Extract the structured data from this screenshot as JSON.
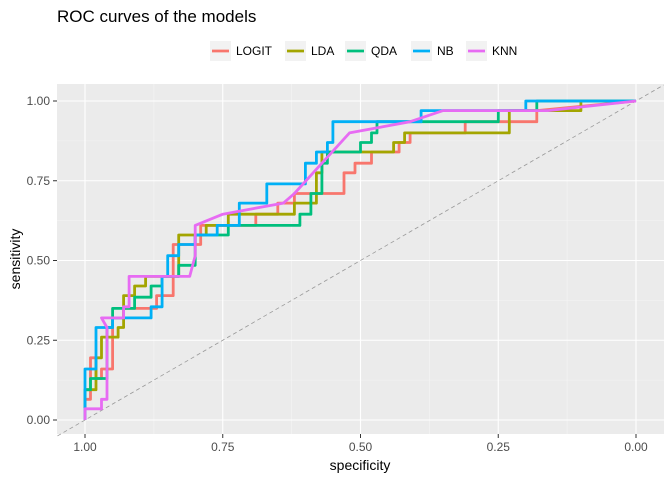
{
  "chart_data": {
    "type": "line",
    "title": "ROC curves of the models",
    "xlabel": "specificity",
    "ylabel": "sensitivity",
    "x_reversed": true,
    "xlim": [
      1.0,
      0.0
    ],
    "ylim": [
      0.0,
      1.0
    ],
    "x_ticks": [
      "1.00",
      "0.75",
      "0.50",
      "0.25",
      "0.00"
    ],
    "y_ticks": [
      "0.00",
      "0.25",
      "0.50",
      "0.75",
      "1.00"
    ],
    "x_tick_values": [
      1.0,
      0.75,
      0.5,
      0.25,
      0.0
    ],
    "y_tick_values": [
      0.0,
      0.25,
      0.5,
      0.75,
      1.0
    ],
    "grid": true,
    "legend_position": "top",
    "reference_line": "diagonal dashed grey",
    "series": [
      {
        "name": "LOGIT",
        "color": "#F8766D",
        "points": [
          [
            1.0,
            0.0
          ],
          [
            1.0,
            0.065
          ],
          [
            0.99,
            0.065
          ],
          [
            0.99,
            0.195
          ],
          [
            0.98,
            0.195
          ],
          [
            0.98,
            0.13
          ],
          [
            0.97,
            0.13
          ],
          [
            0.97,
            0.16
          ],
          [
            0.95,
            0.16
          ],
          [
            0.95,
            0.32
          ],
          [
            0.93,
            0.32
          ],
          [
            0.93,
            0.35
          ],
          [
            0.87,
            0.35
          ],
          [
            0.87,
            0.39
          ],
          [
            0.84,
            0.39
          ],
          [
            0.84,
            0.55
          ],
          [
            0.79,
            0.55
          ],
          [
            0.79,
            0.61
          ],
          [
            0.69,
            0.61
          ],
          [
            0.69,
            0.645
          ],
          [
            0.65,
            0.645
          ],
          [
            0.65,
            0.68
          ],
          [
            0.62,
            0.68
          ],
          [
            0.62,
            0.71
          ],
          [
            0.53,
            0.71
          ],
          [
            0.53,
            0.775
          ],
          [
            0.51,
            0.775
          ],
          [
            0.51,
            0.805
          ],
          [
            0.48,
            0.805
          ],
          [
            0.48,
            0.84
          ],
          [
            0.43,
            0.84
          ],
          [
            0.43,
            0.87
          ],
          [
            0.41,
            0.87
          ],
          [
            0.41,
            0.9
          ],
          [
            0.31,
            0.9
          ],
          [
            0.31,
            0.935
          ],
          [
            0.18,
            0.935
          ],
          [
            0.18,
            0.97
          ],
          [
            0.0,
            1.0
          ]
        ]
      },
      {
        "name": "LDA",
        "color": "#A3A500",
        "points": [
          [
            1.0,
            0.0
          ],
          [
            1.0,
            0.095
          ],
          [
            0.98,
            0.095
          ],
          [
            0.98,
            0.195
          ],
          [
            0.97,
            0.195
          ],
          [
            0.97,
            0.26
          ],
          [
            0.94,
            0.26
          ],
          [
            0.94,
            0.29
          ],
          [
            0.93,
            0.29
          ],
          [
            0.93,
            0.39
          ],
          [
            0.91,
            0.39
          ],
          [
            0.91,
            0.42
          ],
          [
            0.89,
            0.42
          ],
          [
            0.89,
            0.45
          ],
          [
            0.83,
            0.45
          ],
          [
            0.83,
            0.58
          ],
          [
            0.78,
            0.58
          ],
          [
            0.78,
            0.61
          ],
          [
            0.74,
            0.61
          ],
          [
            0.74,
            0.645
          ],
          [
            0.62,
            0.645
          ],
          [
            0.62,
            0.68
          ],
          [
            0.58,
            0.68
          ],
          [
            0.58,
            0.775
          ],
          [
            0.57,
            0.775
          ],
          [
            0.57,
            0.84
          ],
          [
            0.44,
            0.84
          ],
          [
            0.44,
            0.87
          ],
          [
            0.42,
            0.87
          ],
          [
            0.42,
            0.9
          ],
          [
            0.23,
            0.9
          ],
          [
            0.23,
            0.97
          ],
          [
            0.1,
            0.97
          ],
          [
            0.1,
            1.0
          ],
          [
            0.0,
            1.0
          ]
        ]
      },
      {
        "name": "QDA",
        "color": "#00BF7D",
        "points": [
          [
            1.0,
            0.0
          ],
          [
            1.0,
            0.095
          ],
          [
            0.99,
            0.095
          ],
          [
            0.99,
            0.13
          ],
          [
            0.96,
            0.13
          ],
          [
            0.96,
            0.29
          ],
          [
            0.95,
            0.29
          ],
          [
            0.95,
            0.35
          ],
          [
            0.91,
            0.35
          ],
          [
            0.91,
            0.385
          ],
          [
            0.88,
            0.385
          ],
          [
            0.88,
            0.42
          ],
          [
            0.86,
            0.42
          ],
          [
            0.86,
            0.45
          ],
          [
            0.83,
            0.45
          ],
          [
            0.83,
            0.485
          ],
          [
            0.8,
            0.485
          ],
          [
            0.8,
            0.58
          ],
          [
            0.74,
            0.58
          ],
          [
            0.74,
            0.61
          ],
          [
            0.61,
            0.61
          ],
          [
            0.61,
            0.645
          ],
          [
            0.59,
            0.645
          ],
          [
            0.59,
            0.71
          ],
          [
            0.57,
            0.71
          ],
          [
            0.57,
            0.805
          ],
          [
            0.56,
            0.805
          ],
          [
            0.56,
            0.84
          ],
          [
            0.5,
            0.84
          ],
          [
            0.5,
            0.87
          ],
          [
            0.48,
            0.87
          ],
          [
            0.48,
            0.9
          ],
          [
            0.47,
            0.9
          ],
          [
            0.47,
            0.935
          ],
          [
            0.25,
            0.935
          ],
          [
            0.25,
            0.97
          ],
          [
            0.18,
            0.97
          ],
          [
            0.18,
            1.0
          ],
          [
            0.0,
            1.0
          ]
        ]
      },
      {
        "name": "NB",
        "color": "#00B0F6",
        "points": [
          [
            1.0,
            0.0
          ],
          [
            1.0,
            0.16
          ],
          [
            0.98,
            0.16
          ],
          [
            0.98,
            0.29
          ],
          [
            0.95,
            0.29
          ],
          [
            0.95,
            0.32
          ],
          [
            0.88,
            0.32
          ],
          [
            0.88,
            0.355
          ],
          [
            0.86,
            0.355
          ],
          [
            0.86,
            0.45
          ],
          [
            0.85,
            0.45
          ],
          [
            0.85,
            0.515
          ],
          [
            0.83,
            0.515
          ],
          [
            0.83,
            0.55
          ],
          [
            0.8,
            0.55
          ],
          [
            0.8,
            0.58
          ],
          [
            0.76,
            0.58
          ],
          [
            0.76,
            0.61
          ],
          [
            0.72,
            0.61
          ],
          [
            0.72,
            0.68
          ],
          [
            0.67,
            0.68
          ],
          [
            0.67,
            0.74
          ],
          [
            0.6,
            0.74
          ],
          [
            0.6,
            0.805
          ],
          [
            0.58,
            0.805
          ],
          [
            0.58,
            0.84
          ],
          [
            0.56,
            0.84
          ],
          [
            0.56,
            0.87
          ],
          [
            0.55,
            0.87
          ],
          [
            0.55,
            0.935
          ],
          [
            0.39,
            0.935
          ],
          [
            0.39,
            0.97
          ],
          [
            0.2,
            0.97
          ],
          [
            0.2,
            1.0
          ],
          [
            0.0,
            1.0
          ]
        ]
      },
      {
        "name": "KNN",
        "color": "#E76BF3",
        "points": [
          [
            1.0,
            0.0
          ],
          [
            1.0,
            0.035
          ],
          [
            0.97,
            0.035
          ],
          [
            0.97,
            0.065
          ],
          [
            0.96,
            0.065
          ],
          [
            0.96,
            0.16
          ],
          [
            0.96,
            0.29
          ],
          [
            0.97,
            0.32
          ],
          [
            0.93,
            0.32
          ],
          [
            0.93,
            0.355
          ],
          [
            0.92,
            0.355
          ],
          [
            0.92,
            0.45
          ],
          [
            0.81,
            0.45
          ],
          [
            0.8,
            0.515
          ],
          [
            0.8,
            0.61
          ],
          [
            0.75,
            0.645
          ],
          [
            0.64,
            0.68
          ],
          [
            0.62,
            0.71
          ],
          [
            0.57,
            0.805
          ],
          [
            0.52,
            0.9
          ],
          [
            0.41,
            0.935
          ],
          [
            0.35,
            0.97
          ],
          [
            0.16,
            0.97
          ],
          [
            0.0,
            1.0
          ]
        ]
      }
    ]
  }
}
